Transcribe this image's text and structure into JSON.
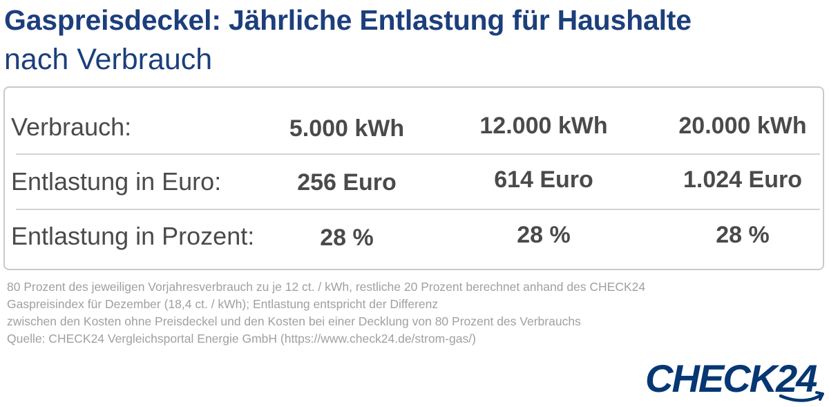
{
  "header": {
    "title": "Gaspreisdeckel: Jährliche Entlastung für Haushalte",
    "subtitle": "nach Verbrauch"
  },
  "chart_data": {
    "type": "table",
    "rows": [
      {
        "label": "Verbrauch:",
        "values": [
          "5.000 kWh",
          "12.000 kWh",
          "20.000 kWh"
        ]
      },
      {
        "label": "Entlastung in Euro:",
        "values": [
          "256 Euro",
          "614 Euro",
          "1.024 Euro"
        ]
      },
      {
        "label": "Entlastung in Prozent:",
        "values": [
          "28 %",
          "28 %",
          "28 %"
        ]
      }
    ],
    "series": [
      {
        "values": [
          5000,
          12000,
          20000
        ]
      },
      {
        "values": [
          256,
          614,
          1024
        ]
      },
      {
        "values": [
          28,
          28,
          28
        ]
      }
    ]
  },
  "footnote": {
    "lines": [
      "80 Prozent des jeweiligen Vorjahresverbrauch zu je 12 ct. / kWh, restliche 20 Prozent berechnet anhand des CHECK24",
      "Gaspreisindex für Dezember (18,4 ct. / kWh); Entlastung entspricht der Differenz",
      "zwischen den Kosten ohne Preisdeckel und den Kosten bei einer Decklung von 80 Prozent des Verbrauchs",
      "Quelle: CHECK24 Vergleichsportal Energie GmbH (https://www.check24.de/strom-gas/)"
    ]
  },
  "logo": {
    "text": "CHECK24",
    "color": "#063773"
  },
  "colors": {
    "title": "#1c3f7c",
    "table_text": "#4a4a4a",
    "border": "#c9c9c9",
    "footnote": "#a0a0a0"
  }
}
